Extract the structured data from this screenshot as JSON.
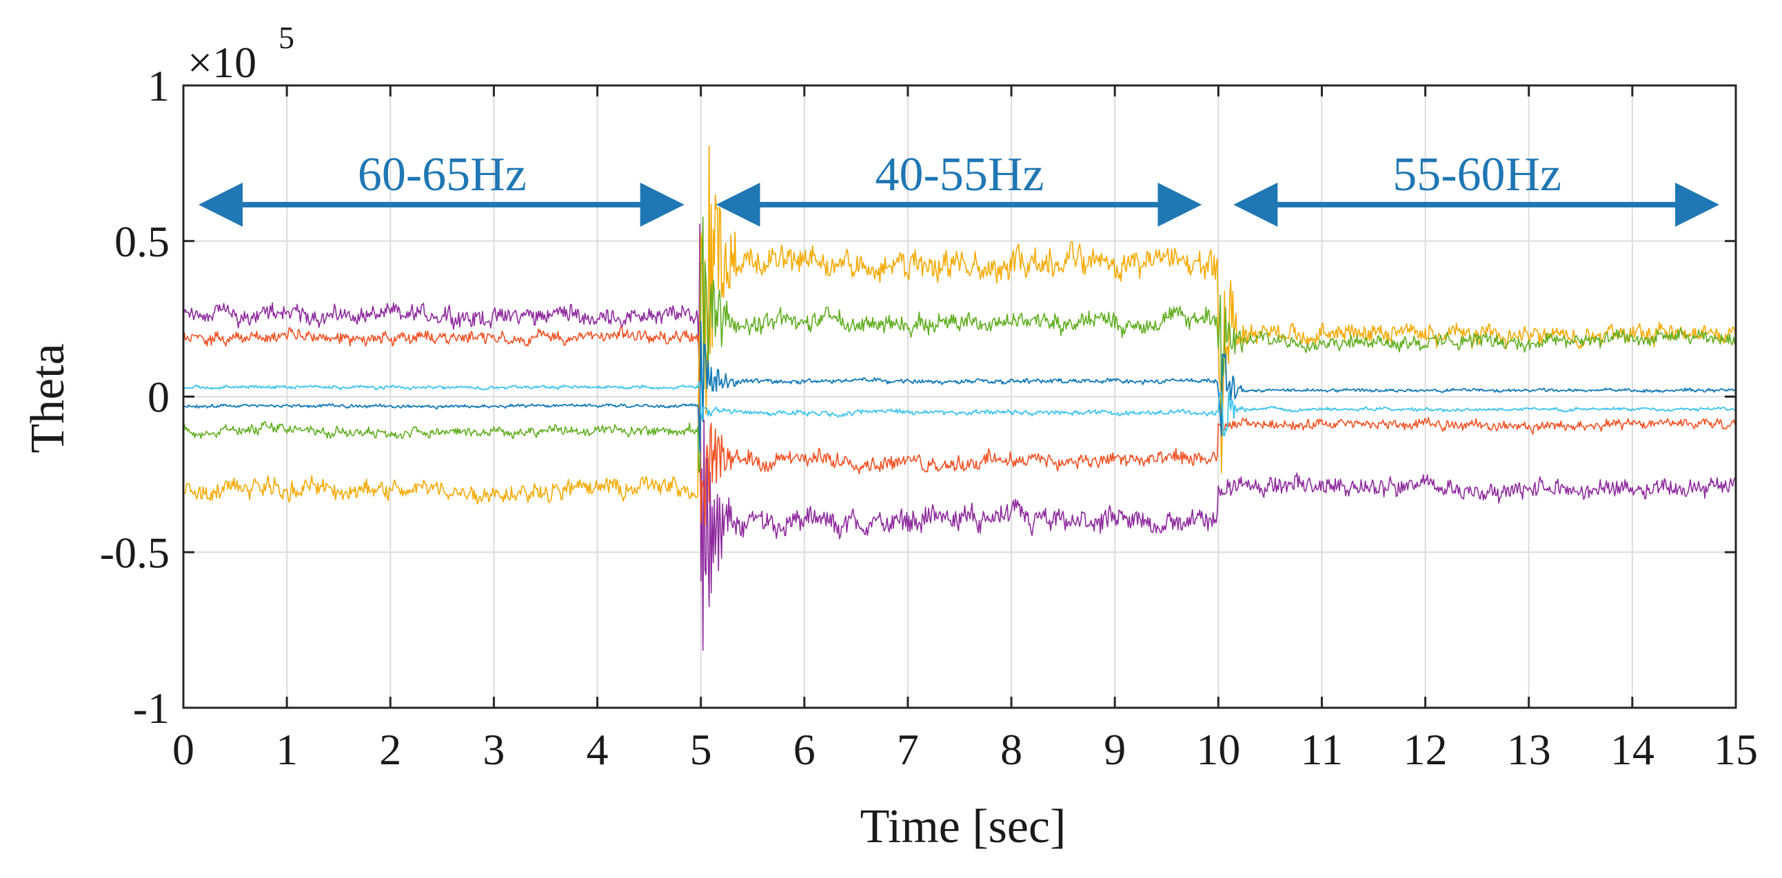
{
  "chart_data": {
    "type": "line",
    "title": "",
    "xlabel": "Time [sec]",
    "ylabel": "Theta",
    "exponent_base": "×10",
    "exponent_power": "5",
    "xlim": [
      0,
      15
    ],
    "ylim": [
      -1,
      1
    ],
    "x_ticks": [
      0,
      1,
      2,
      3,
      4,
      5,
      6,
      7,
      8,
      9,
      10,
      11,
      12,
      13,
      14,
      15
    ],
    "x_tick_labels": [
      "0",
      "1",
      "2",
      "3",
      "4",
      "5",
      "6",
      "7",
      "8",
      "9",
      "10",
      "11",
      "12",
      "13",
      "14",
      "15"
    ],
    "y_ticks": [
      1,
      0.5,
      0,
      -0.5,
      -1
    ],
    "y_tick_labels": [
      "1",
      "0.5",
      "0",
      "-0.5",
      "-1"
    ],
    "grid": true,
    "segments": [
      {
        "label": "60-65Hz",
        "x_start": 0,
        "x_end": 5
      },
      {
        "label": "40-55Hz",
        "x_start": 5,
        "x_end": 10
      },
      {
        "label": "55-60Hz",
        "x_start": 10,
        "x_end": 15
      }
    ],
    "annotation_color": "#1f77b4",
    "series": [
      {
        "name": "purple",
        "color": "#8e2a9e",
        "segment_means": [
          0.26,
          -0.4,
          -0.29
        ],
        "noise": [
          0.045,
          0.06,
          0.045
        ],
        "lw": 1.6
      },
      {
        "name": "red",
        "color": "#f25022",
        "segment_means": [
          0.19,
          -0.2,
          -0.09
        ],
        "noise": [
          0.03,
          0.04,
          0.025
        ],
        "lw": 1.6
      },
      {
        "name": "orange",
        "color": "#f5a800",
        "segment_means": [
          -0.3,
          0.43,
          0.2
        ],
        "noise": [
          0.045,
          0.07,
          0.045
        ],
        "lw": 1.6
      },
      {
        "name": "green",
        "color": "#5fad1f",
        "segment_means": [
          -0.11,
          0.24,
          0.18
        ],
        "noise": [
          0.025,
          0.045,
          0.035
        ],
        "lw": 1.6
      },
      {
        "name": "blue",
        "color": "#0f78b8",
        "segment_means": [
          -0.03,
          0.05,
          0.02
        ],
        "noise": [
          0.008,
          0.012,
          0.008
        ],
        "lw": 1.8
      },
      {
        "name": "cyan",
        "color": "#3cc4ee",
        "segment_means": [
          0.03,
          -0.05,
          -0.04
        ],
        "noise": [
          0.008,
          0.012,
          0.008
        ],
        "lw": 1.8
      }
    ]
  }
}
